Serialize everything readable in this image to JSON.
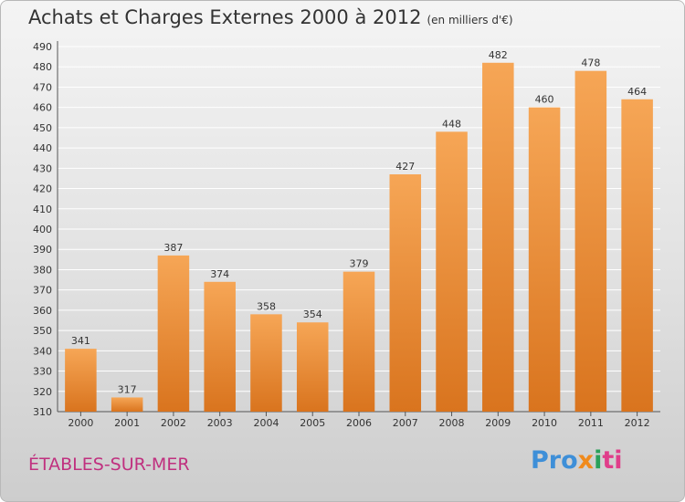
{
  "header": {
    "title": "Achats et Charges Externes 2000 à 2012",
    "subtitle": "(en milliers d'€)"
  },
  "footer": {
    "commune": "ÉTABLES-SUR-MER",
    "logo_parts": [
      "Pro",
      "x",
      "i",
      "ti"
    ]
  },
  "colors": {
    "bar_top": "#f6a656",
    "bar_bottom": "#d9741e",
    "grid": "#ffffff",
    "commune": "#c0307f"
  },
  "chart_data": {
    "type": "bar",
    "title": "Achats et Charges Externes 2000 à 2012",
    "subtitle": "(en milliers d'€)",
    "categories": [
      "2000",
      "2001",
      "2002",
      "2003",
      "2004",
      "2005",
      "2006",
      "2007",
      "2008",
      "2009",
      "2010",
      "2011",
      "2012"
    ],
    "values": [
      341,
      317,
      387,
      374,
      358,
      354,
      379,
      427,
      448,
      482,
      460,
      478,
      464
    ],
    "ylim": [
      310,
      490
    ],
    "yticks": [
      310,
      320,
      330,
      340,
      350,
      360,
      370,
      380,
      390,
      400,
      410,
      420,
      430,
      440,
      450,
      460,
      470,
      480,
      490
    ],
    "grid": true,
    "xlabel": "",
    "ylabel": ""
  }
}
